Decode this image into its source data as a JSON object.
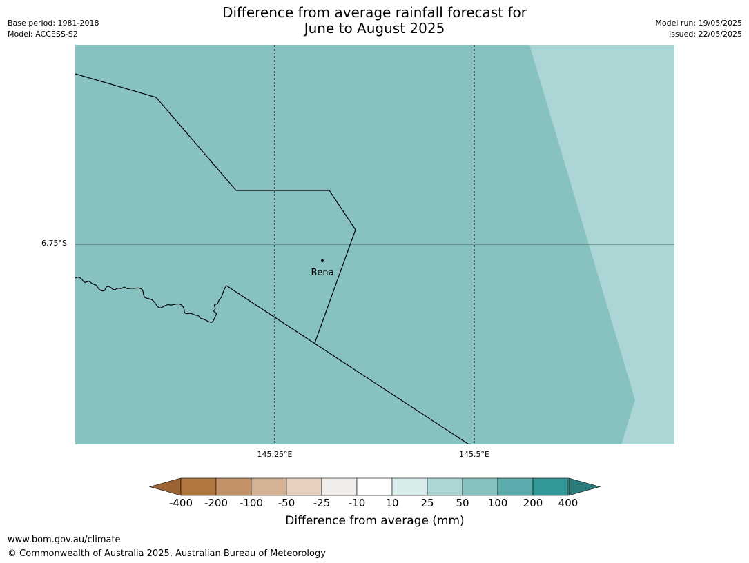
{
  "title": {
    "line1": "Difference from average rainfall forecast for",
    "line2": "June to August 2025"
  },
  "meta": {
    "base_period": "Base period: 1981-2018",
    "model": "Model: ACCESS-S2",
    "model_run": "Model run: 19/05/2025",
    "issued": "Issued: 22/05/2025"
  },
  "map": {
    "latitude_label": "6.75°S",
    "longitude_labels": [
      "145.25°E",
      "145.5°E"
    ],
    "place": "Bena",
    "fill_colors": {
      "range_50_100": "#87c2c0",
      "range_25_50": "#acd5d5"
    }
  },
  "legend": {
    "title": "Difference from average (mm)",
    "ticks": [
      "-400",
      "-200",
      "-100",
      "-50",
      "-25",
      "-10",
      "10",
      "25",
      "50",
      "100",
      "200",
      "400"
    ],
    "colors": [
      "#9c6434",
      "#b0783e",
      "#c39168",
      "#d5b394",
      "#e7d2c0",
      "#f0ece9",
      "#ffffff",
      "#d8eceb",
      "#acd5d5",
      "#87c2c0",
      "#5aabab",
      "#339998",
      "#2b7c7b"
    ]
  },
  "footer": {
    "url": "www.bom.gov.au/climate",
    "copyright": "© Commonwealth of Australia 2025, Australian Bureau of Meteorology"
  }
}
